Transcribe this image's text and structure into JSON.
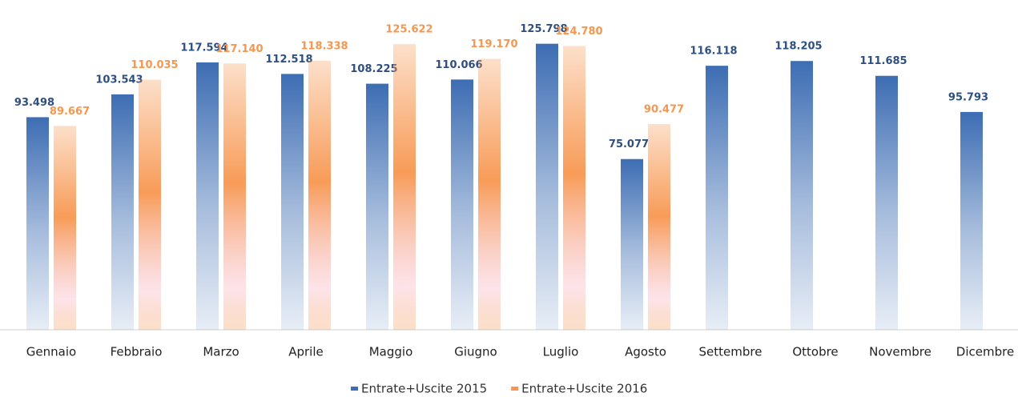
{
  "chart_data": {
    "type": "bar",
    "categories": [
      "Gennaio",
      "Febbraio",
      "Marzo",
      "Aprile",
      "Maggio",
      "Giugno",
      "Luglio",
      "Agosto",
      "Settembre",
      "Ottobre",
      "Novembre",
      "Dicembre"
    ],
    "series": [
      {
        "name": "Entrate+Uscite 2015",
        "color": "#3d6db3",
        "values": [
          93498,
          103543,
          117594,
          112518,
          108225,
          110066,
          125798,
          75077,
          116118,
          118205,
          111685,
          95793
        ],
        "value_labels": [
          "93.498",
          "103.543",
          "117.594",
          "112.518",
          "108.225",
          "110.066",
          "125.798",
          "75.077",
          "116.118",
          "118.205",
          "111.685",
          "95.793"
        ]
      },
      {
        "name": "Entrate+Uscite 2016",
        "color": "#f7964f",
        "values": [
          89667,
          110035,
          117140,
          118338,
          125622,
          119170,
          124780,
          90477,
          null,
          null,
          null,
          null
        ],
        "value_labels": [
          "89.667",
          "110.035",
          "117.140",
          "118.338",
          "125.622",
          "119.170",
          "124.780",
          "90.477",
          null,
          null,
          null,
          null
        ]
      }
    ],
    "ylim": [
      0,
      138000
    ],
    "legend": "bottom"
  }
}
